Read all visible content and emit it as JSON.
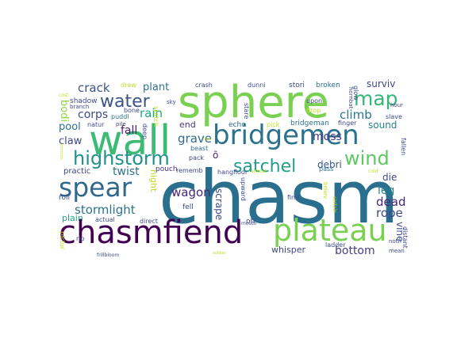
{
  "words": [
    {
      "text": "chasm",
      "color": "#2a6f8e",
      "vertical": false
    },
    {
      "text": "sphere",
      "color": "#7ad151",
      "vertical": false
    },
    {
      "text": "wall",
      "color": "#3cbb75",
      "vertical": false
    },
    {
      "text": "bridgemen",
      "color": "#2c728e",
      "vertical": false
    },
    {
      "text": "chasmfiend",
      "color": "#440154",
      "vertical": false
    },
    {
      "text": "plateau",
      "color": "#7ad151",
      "vertical": false
    },
    {
      "text": "spear",
      "color": "#31688e",
      "vertical": false
    },
    {
      "text": "highstorm",
      "color": "#21918c",
      "vertical": false
    },
    {
      "text": "water",
      "color": "#3b528b",
      "vertical": false
    },
    {
      "text": "satchel",
      "color": "#1f9e89",
      "vertical": false
    },
    {
      "text": "wind",
      "color": "#5ec962",
      "vertical": false
    },
    {
      "text": "map",
      "color": "#35b779",
      "vertical": false
    },
    {
      "text": "stormlight",
      "color": "#2c728e",
      "vertical": false
    },
    {
      "text": "crack",
      "color": "#3b528b",
      "vertical": false
    },
    {
      "text": "corps",
      "color": "#3e4a89",
      "vertical": false
    },
    {
      "text": "rain",
      "color": "#22a884",
      "vertical": false
    },
    {
      "text": "climb",
      "color": "#2a788e",
      "vertical": false
    },
    {
      "text": "moss",
      "color": "#453781",
      "vertical": false
    },
    {
      "text": "grave",
      "color": "#31688e",
      "vertical": false
    },
    {
      "text": "wagon",
      "color": "#482878",
      "vertical": false
    },
    {
      "text": "dead",
      "color": "#482878",
      "vertical": false
    },
    {
      "text": "rope",
      "color": "#3e4989",
      "vertical": false
    },
    {
      "text": "leg",
      "color": "#26828e",
      "vertical": false
    },
    {
      "text": "bottom",
      "color": "#433e85",
      "vertical": false
    },
    {
      "text": "twist",
      "color": "#2d708e",
      "vertical": false
    },
    {
      "text": "fall",
      "color": "#481f70",
      "vertical": false
    },
    {
      "text": "pool",
      "color": "#2e6e8e",
      "vertical": false
    },
    {
      "text": "claw",
      "color": "#3e4a89",
      "vertical": false
    },
    {
      "text": "plant",
      "color": "#2d708e",
      "vertical": false
    },
    {
      "text": "surviv",
      "color": "#3f4788",
      "vertical": false
    },
    {
      "text": "sound",
      "color": "#25838e",
      "vertical": false
    },
    {
      "text": "debri",
      "color": "#39568c",
      "vertical": false
    },
    {
      "text": "die",
      "color": "#3e4a89",
      "vertical": false
    },
    {
      "text": "end",
      "color": "#46327e",
      "vertical": false
    },
    {
      "text": "whisper",
      "color": "#3f4788",
      "vertical": false
    },
    {
      "text": "scrape",
      "color": "#3e4a89",
      "vertical": true
    },
    {
      "text": "bodi",
      "color": "#8fd744",
      "vertical": true
    },
    {
      "text": "night",
      "color": "#bddf26",
      "vertical": true
    },
    {
      "text": "vine",
      "color": "#3e4a89",
      "vertical": true
    },
    {
      "text": "õ",
      "color": "#482878",
      "vertical": false
    },
    {
      "text": "practic",
      "color": "#3e4a89",
      "vertical": false
    },
    {
      "text": "plain",
      "color": "#20a386",
      "vertical": false
    },
    {
      "text": "pouch",
      "color": "#46327e",
      "vertical": false
    },
    {
      "text": "rememb",
      "color": "#404688",
      "vertical": false
    },
    {
      "text": "fell",
      "color": "#3e4a89",
      "vertical": false
    },
    {
      "text": "shadow",
      "color": "#3e4a89",
      "vertical": false
    },
    {
      "text": "natur",
      "color": "#3e4a89",
      "vertical": false
    },
    {
      "text": "puddl",
      "color": "#2d708e",
      "vertical": false
    },
    {
      "text": "bone",
      "color": "#3e4a89",
      "vertical": false
    },
    {
      "text": "pile",
      "color": "#3e4a89",
      "vertical": false
    },
    {
      "text": "sky",
      "color": "#3e4a89",
      "vertical": false
    },
    {
      "text": "echo",
      "color": "#2d708e",
      "vertical": false
    },
    {
      "text": "stare",
      "color": "#3e4a89",
      "vertical": true
    },
    {
      "text": "pick",
      "color": "#bddf26",
      "vertical": false
    },
    {
      "text": "bridgeman",
      "color": "#2d708e",
      "vertical": false
    },
    {
      "text": "finger",
      "color": "#3e4a89",
      "vertical": false
    },
    {
      "text": "slave",
      "color": "#3e4a89",
      "vertical": false
    },
    {
      "text": "upon",
      "color": "#3e4a89",
      "vertical": false
    },
    {
      "text": "drop",
      "color": "#bddf26",
      "vertical": false
    },
    {
      "text": "hornbat",
      "color": "#3e4a89",
      "vertical": true
    },
    {
      "text": "glow",
      "color": "#3e4a89",
      "vertical": true
    },
    {
      "text": "hour",
      "color": "#3e4a89",
      "vertical": false
    },
    {
      "text": "stori",
      "color": "#3e4a89",
      "vertical": false
    },
    {
      "text": "broken",
      "color": "#2d708e",
      "vertical": false
    },
    {
      "text": "dunni",
      "color": "#3e4a89",
      "vertical": false
    },
    {
      "text": "crash",
      "color": "#3e4a89",
      "vertical": false
    },
    {
      "text": "draw",
      "color": "#bddf26",
      "vertical": false
    },
    {
      "text": "beast",
      "color": "#2d708e",
      "vertical": false
    },
    {
      "text": "pack",
      "color": "#3e4a89",
      "vertical": false
    },
    {
      "text": "floor",
      "color": "#3e4a89",
      "vertical": false
    },
    {
      "text": "almost",
      "color": "#bddf26",
      "vertical": false
    },
    {
      "text": "mouth",
      "color": "#3e4a89",
      "vertical": false
    },
    {
      "text": "oh",
      "color": "#3e4a89",
      "vertical": false
    },
    {
      "text": "upward",
      "color": "#3e4a89",
      "vertical": true
    },
    {
      "text": "hang",
      "color": "#3e4a89",
      "vertical": false
    },
    {
      "text": "deep",
      "color": "#3e4a89",
      "vertical": true
    },
    {
      "text": "sketch",
      "color": "#bddf26",
      "vertical": true
    },
    {
      "text": "direct",
      "color": "#3e4a89",
      "vertical": false
    },
    {
      "text": "actual",
      "color": "#3e4a89",
      "vertical": false
    },
    {
      "text": "roll",
      "color": "#3e4a89",
      "vertical": false
    },
    {
      "text": "rip",
      "color": "#3e4a89",
      "vertical": false
    },
    {
      "text": "frillbloom",
      "color": "#3e4a89",
      "vertical": false
    },
    {
      "text": "pictur",
      "color": "#bddf26",
      "vertical": true
    },
    {
      "text": "find",
      "color": "#3e4a89",
      "vertical": false
    },
    {
      "text": "believ",
      "color": "#bddf26",
      "vertical": true
    },
    {
      "text": "ladder",
      "color": "#3e4a89",
      "vertical": false
    },
    {
      "text": "distant",
      "color": "#3e4a89",
      "vertical": true
    },
    {
      "text": "heard",
      "color": "#2d708e",
      "vertical": true
    },
    {
      "text": "noth",
      "color": "#3e4a89",
      "vertical": false
    },
    {
      "text": "mean",
      "color": "#3e4a89",
      "vertical": false
    },
    {
      "text": "fallen",
      "color": "#3e4a89",
      "vertical": true
    },
    {
      "text": "cold",
      "color": "#bddf26",
      "vertical": false
    },
    {
      "text": "pass",
      "color": "#2d708e",
      "vertical": false
    },
    {
      "text": "common",
      "color": "#bddf26",
      "vertical": true
    },
    {
      "text": "cost",
      "color": "#bddf26",
      "vertical": false
    },
    {
      "text": "branch",
      "color": "#3e4a89",
      "vertical": false
    },
    {
      "text": "tree",
      "color": "#bddf26",
      "vertical": false
    },
    {
      "text": "certain",
      "color": "#bddf26",
      "vertical": true
    },
    {
      "text": "soldier",
      "color": "#bddf26",
      "vertical": false
    }
  ]
}
